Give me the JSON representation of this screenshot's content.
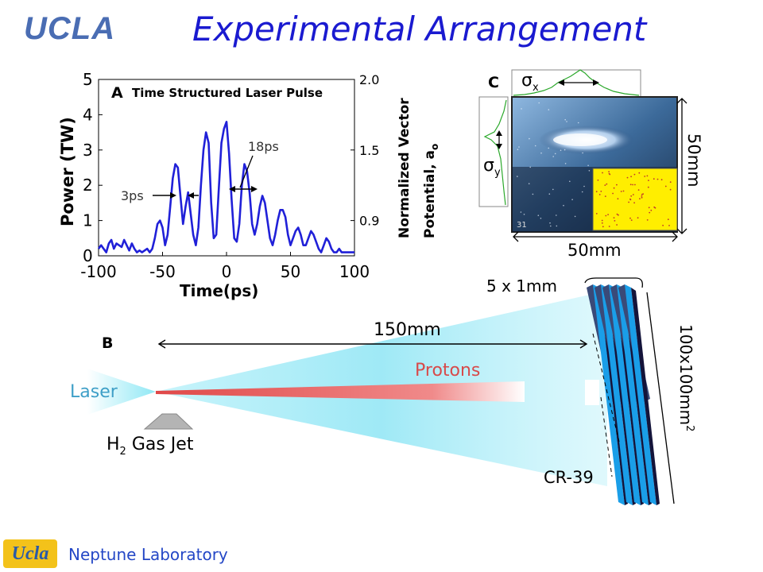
{
  "header": {
    "logo_text": "UCLA",
    "title": "Experimental Arrangement"
  },
  "footer": {
    "logo_text": "Ucla",
    "lab_name": "Neptune Laboratory"
  },
  "panel_a": {
    "label": "A",
    "title": "Time Structured Laser Pulse",
    "ylabel_left": "Power (TW)",
    "ylabel_right_line1": "Normalized Vector",
    "ylabel_right_line2": "Potential, a",
    "ylabel_right_sub": "o",
    "xlabel": "Time(ps)",
    "annotation_3ps": "3ps",
    "annotation_18ps": "18ps",
    "colors": {
      "trace": "#2020d8"
    }
  },
  "chart_data": {
    "type": "line",
    "title": "Time Structured Laser Pulse",
    "xlabel": "Time(ps)",
    "ylabel": "Power (TW)",
    "y2label": "Normalized Vector Potential, ao",
    "xlim": [
      -100,
      100
    ],
    "ylim": [
      0,
      5
    ],
    "x_ticks": [
      "-100",
      "-50",
      "0",
      "50",
      "100"
    ],
    "y_ticks": [
      "0",
      "1",
      "2",
      "3",
      "4",
      "5"
    ],
    "y2_ticks": [
      "0.9",
      "1.5",
      "2.0"
    ],
    "y2_tick_positions": [
      1,
      3,
      5
    ],
    "series": [
      {
        "x": [
          -100,
          -98,
          -96,
          -94,
          -92,
          -90,
          -88,
          -86,
          -84,
          -82,
          -80,
          -78,
          -76,
          -74,
          -72,
          -70,
          -68,
          -66,
          -64,
          -62,
          -60,
          -58,
          -56,
          -54,
          -52,
          -50,
          -48,
          -46,
          -44,
          -42,
          -40,
          -38,
          -36,
          -34,
          -32,
          -30,
          -28,
          -26,
          -24,
          -22,
          -20,
          -18,
          -16,
          -14,
          -12,
          -10,
          -8,
          -6,
          -4,
          -2,
          0,
          2,
          4,
          6,
          8,
          10,
          12,
          14,
          16,
          18,
          20,
          22,
          24,
          26,
          28,
          30,
          32,
          34,
          36,
          38,
          40,
          42,
          44,
          46,
          48,
          50,
          52,
          54,
          56,
          58,
          60,
          62,
          64,
          66,
          68,
          70,
          72,
          74,
          76,
          78,
          80,
          82,
          84,
          86,
          88,
          90,
          92,
          94,
          96,
          98,
          100
        ],
        "values": [
          0.2,
          0.3,
          0.2,
          0.1,
          0.35,
          0.45,
          0.2,
          0.35,
          0.3,
          0.25,
          0.45,
          0.3,
          0.15,
          0.35,
          0.2,
          0.1,
          0.15,
          0.1,
          0.15,
          0.2,
          0.1,
          0.2,
          0.5,
          0.9,
          1.0,
          0.8,
          0.3,
          0.6,
          1.4,
          2.2,
          2.6,
          2.5,
          1.7,
          0.9,
          1.4,
          1.8,
          1.2,
          0.6,
          0.3,
          0.8,
          2.0,
          3.0,
          3.5,
          3.2,
          1.5,
          0.5,
          0.6,
          1.9,
          3.2,
          3.6,
          3.8,
          2.9,
          1.6,
          0.5,
          0.4,
          0.9,
          2.0,
          2.6,
          2.4,
          1.8,
          0.9,
          0.6,
          0.9,
          1.4,
          1.7,
          1.5,
          1.0,
          0.5,
          0.3,
          0.6,
          1.0,
          1.3,
          1.3,
          1.1,
          0.6,
          0.3,
          0.5,
          0.7,
          0.8,
          0.6,
          0.3,
          0.3,
          0.5,
          0.7,
          0.6,
          0.4,
          0.2,
          0.1,
          0.3,
          0.5,
          0.4,
          0.2,
          0.1,
          0.1,
          0.2,
          0.1,
          0.1,
          0.1,
          0.1,
          0.1,
          0.1
        ]
      }
    ],
    "grid": false
  },
  "panel_c": {
    "label": "C",
    "sigma_x": "σ",
    "sigma_x_sub": "x",
    "sigma_y": "σ",
    "sigma_y_sub": "y",
    "dim_vertical": "50mm",
    "dim_horizontal": "50mm",
    "plate_number": "31",
    "colors": {
      "profile": "#2aa82a",
      "inset": "#ffee00"
    }
  },
  "panel_b": {
    "label": "B",
    "distance": "150mm",
    "protons": "Protons",
    "laser": "Laser",
    "gas_jet_prefix": "H",
    "gas_jet_sub": "2",
    "gas_jet_suffix": " Gas Jet",
    "stack_thickness": "5 x 1mm",
    "stack_area": "100x100mm",
    "stack_area_sup": "2",
    "detector": "CR-39",
    "colors": {
      "cone": "#8fe8f5",
      "protons": "#e05050",
      "plate": "#1a9ee8",
      "plate_dark": "#14143a"
    }
  }
}
